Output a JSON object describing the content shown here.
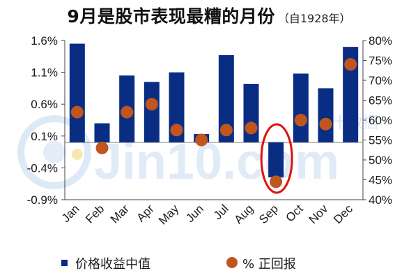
{
  "chart_data": {
    "type": "bar",
    "title": "9月是股市表现最糟的月份",
    "subtitle": "（自1928年）",
    "categories": [
      "Jan",
      "Feb",
      "Mar",
      "Apr",
      "May",
      "Jun",
      "Jul",
      "Aug",
      "Sep",
      "Oct",
      "Nov",
      "Dec"
    ],
    "left_axis": {
      "ticks": [
        "1.6%",
        "1.1%",
        "0.6%",
        "0.1%",
        "-0.4%",
        "-0.9%"
      ],
      "range": [
        -0.9,
        1.6
      ]
    },
    "right_axis": {
      "ticks": [
        "80%",
        "75%",
        "70%",
        "65%",
        "60%",
        "55%",
        "50%",
        "45%",
        "40%"
      ],
      "range": [
        40,
        80
      ]
    },
    "series": [
      {
        "name": "价格收益中值",
        "type": "bar",
        "axis": "left",
        "color": "#0a2d84",
        "values": [
          1.55,
          0.3,
          1.05,
          0.95,
          1.1,
          0.13,
          1.37,
          0.92,
          -0.55,
          1.08,
          0.85,
          1.5
        ]
      },
      {
        "name": "% 正回报",
        "type": "scatter",
        "axis": "right",
        "color": "#c0561e",
        "values": [
          62,
          53,
          62,
          64,
          57.5,
          55,
          57.5,
          58,
          44.5,
          60,
          59,
          74
        ]
      }
    ],
    "legend": "bottom",
    "annotation": {
      "type": "ellipse",
      "target": "Sep",
      "color": "#e01010"
    }
  },
  "watermark": {
    "text": "Jin10.com",
    "subtext": "金十数据"
  },
  "highlight_marker": {
    "category": "Jan",
    "color": "#f7e8b2"
  }
}
